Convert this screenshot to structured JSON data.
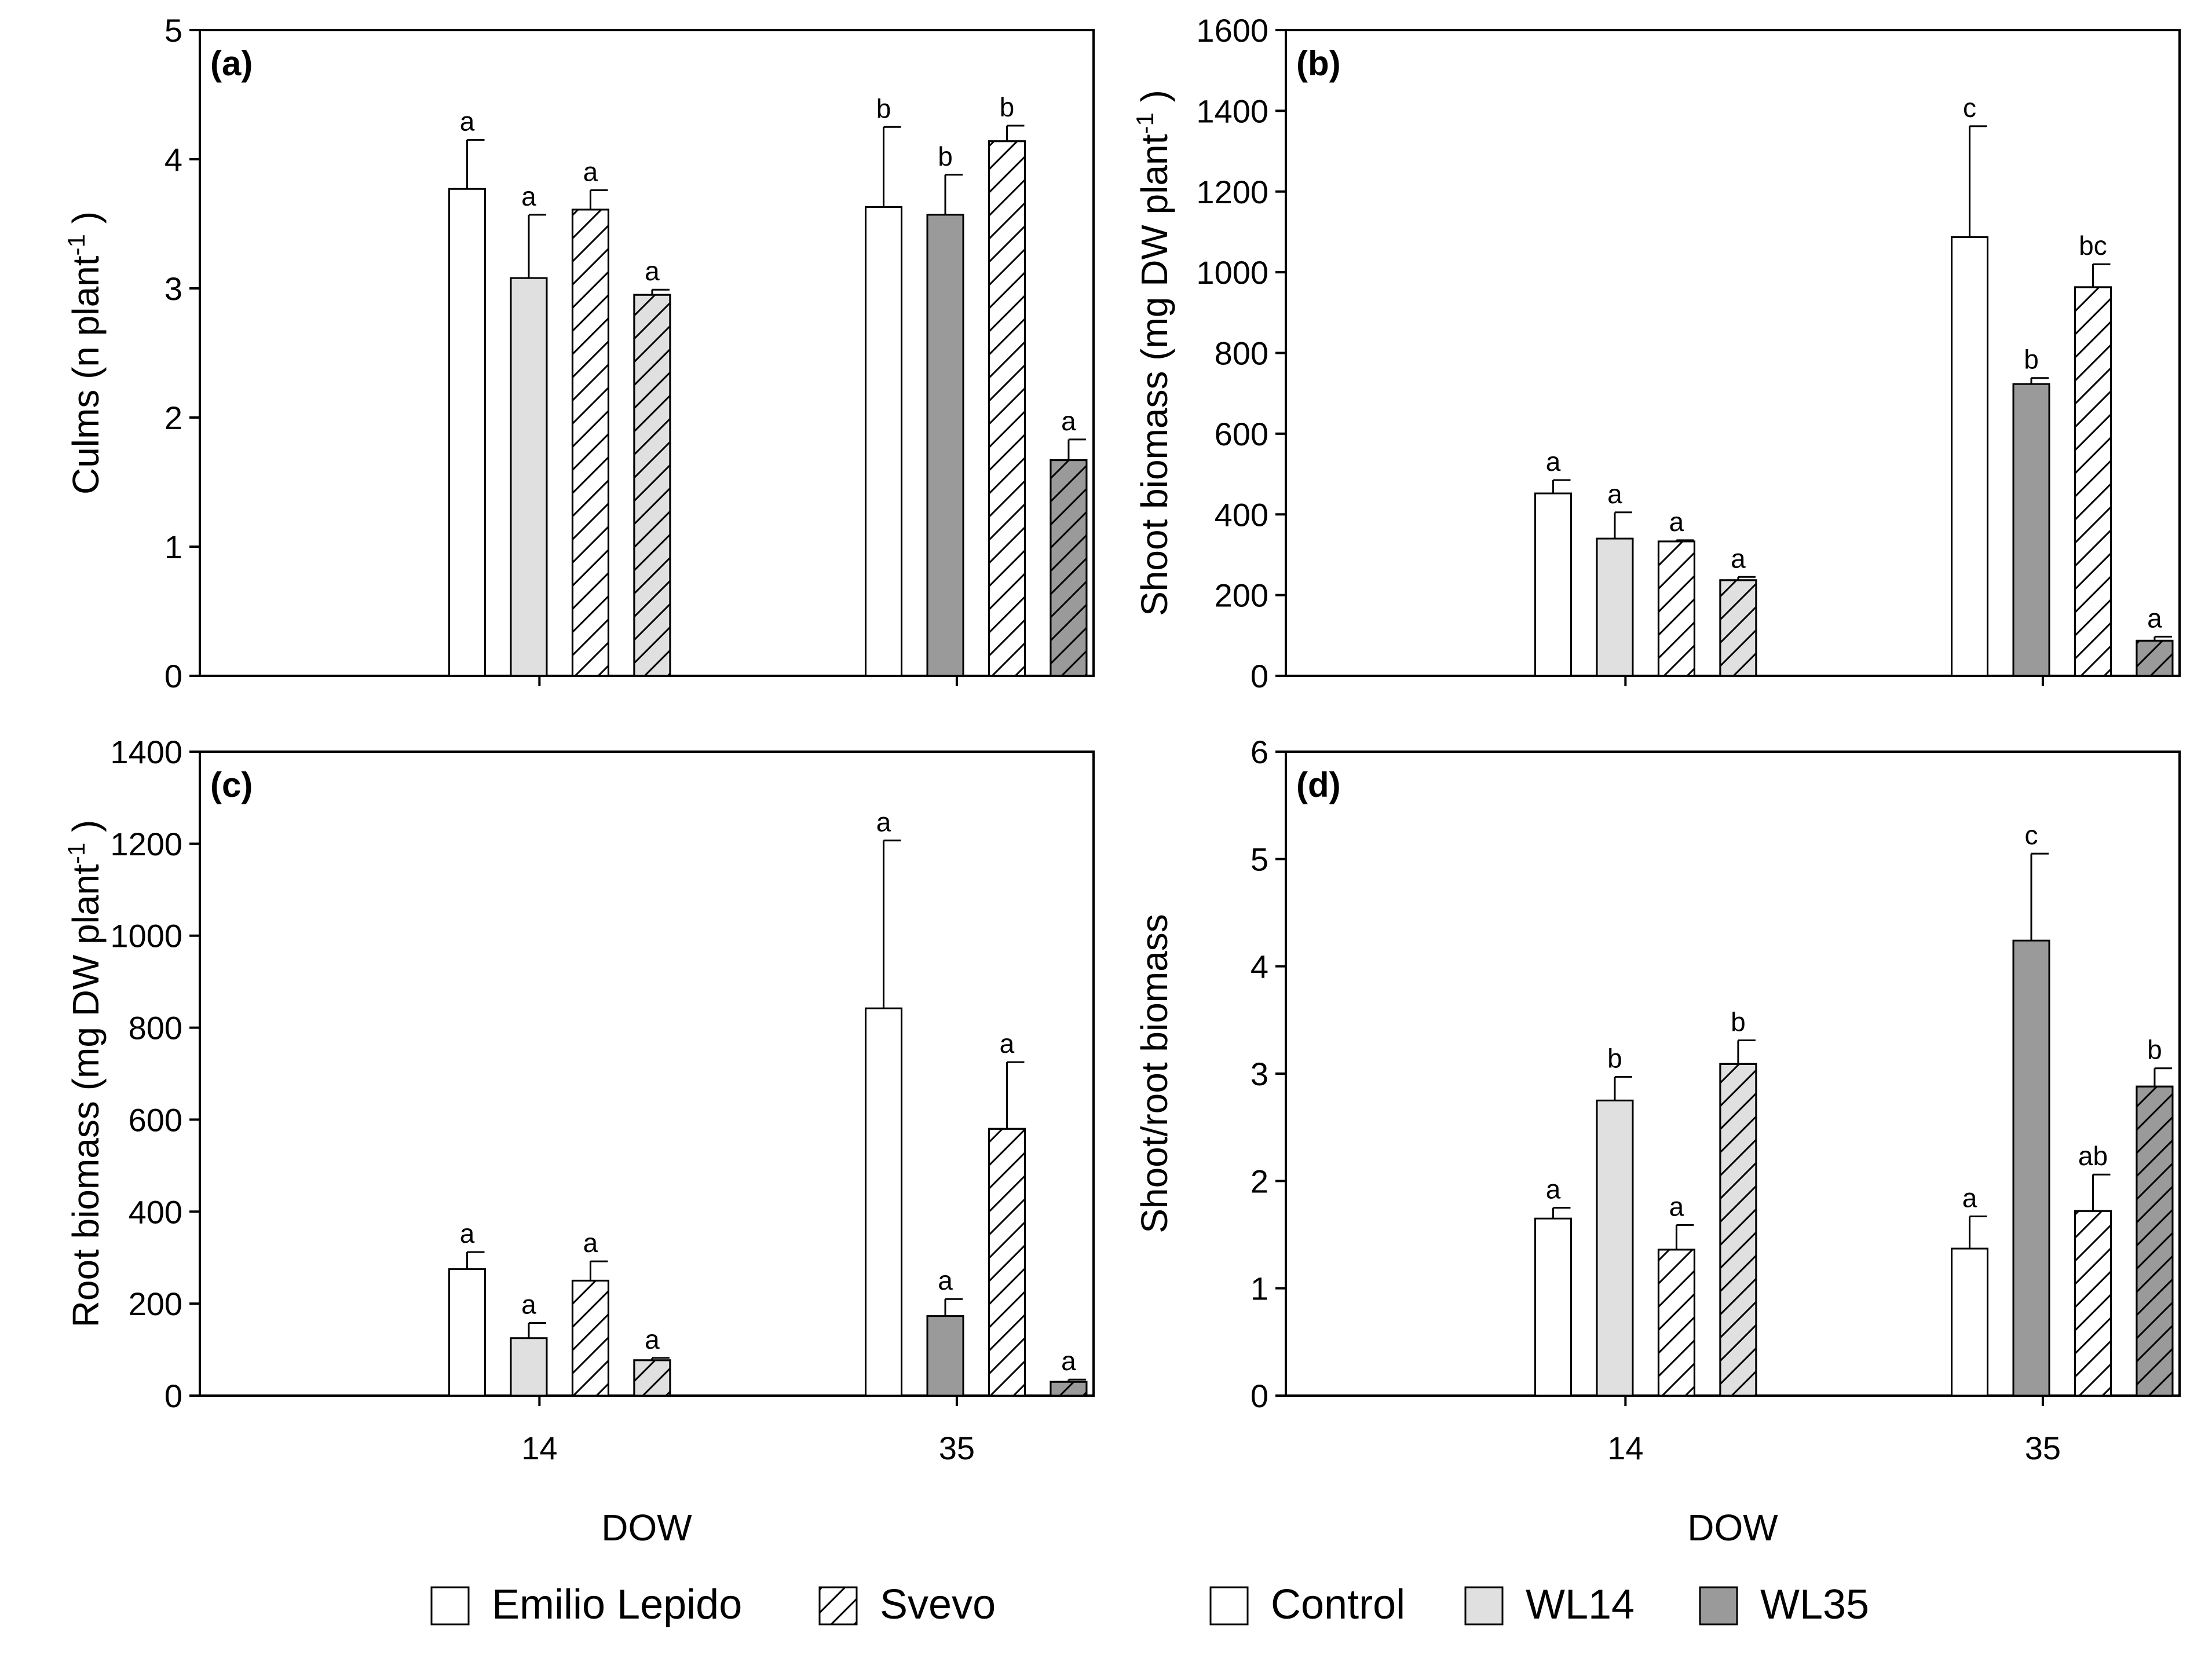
{
  "colors": {
    "Control": "#ffffff",
    "WL14": "#e0e0e0",
    "WL35": "#9a9a9a",
    "stroke": "#000000"
  },
  "legend": {
    "cultivars": [
      {
        "label": "Emilio Lepido",
        "pattern": "solid"
      },
      {
        "label": "Svevo",
        "pattern": "hatch"
      }
    ],
    "treatments": [
      {
        "label": "Control",
        "color": "#ffffff"
      },
      {
        "label": "WL14",
        "color": "#e0e0e0"
      },
      {
        "label": "WL35",
        "color": "#9a9a9a"
      }
    ]
  },
  "chart_data": [
    {
      "panel": "(a)",
      "type": "bar",
      "ylabel": "Culms (n plant^-1)",
      "xlabel": "",
      "categories": [
        "14",
        "35"
      ],
      "ylim": [
        0,
        5
      ],
      "yticks": [
        0,
        1,
        2,
        3,
        4,
        5
      ],
      "bars": [
        {
          "dow": "14",
          "cultivar": "Emilio Lepido",
          "treatment": "Control",
          "value": 3.77,
          "error": 0.38,
          "letter": "a"
        },
        {
          "dow": "14",
          "cultivar": "Emilio Lepido",
          "treatment": "WL14",
          "value": 3.08,
          "error": 0.49,
          "letter": "a"
        },
        {
          "dow": "14",
          "cultivar": "Svevo",
          "treatment": "Control",
          "value": 3.61,
          "error": 0.15,
          "letter": "a"
        },
        {
          "dow": "14",
          "cultivar": "Svevo",
          "treatment": "WL14",
          "value": 2.95,
          "error": 0.04,
          "letter": "a"
        },
        {
          "dow": "35",
          "cultivar": "Emilio Lepido",
          "treatment": "Control",
          "value": 3.63,
          "error": 0.62,
          "letter": "b"
        },
        {
          "dow": "35",
          "cultivar": "Emilio Lepido",
          "treatment": "WL35",
          "value": 3.57,
          "error": 0.31,
          "letter": "b"
        },
        {
          "dow": "35",
          "cultivar": "Svevo",
          "treatment": "Control",
          "value": 4.14,
          "error": 0.12,
          "letter": "b"
        },
        {
          "dow": "35",
          "cultivar": "Svevo",
          "treatment": "WL35",
          "value": 1.67,
          "error": 0.16,
          "letter": "a"
        }
      ]
    },
    {
      "panel": "(b)",
      "type": "bar",
      "ylabel": "Shoot biomass (mg DW plant^-1)",
      "xlabel": "",
      "categories": [
        "14",
        "35"
      ],
      "ylim": [
        0,
        1600
      ],
      "yticks": [
        0,
        200,
        400,
        600,
        800,
        1000,
        1200,
        1400,
        1600
      ],
      "bars": [
        {
          "dow": "14",
          "cultivar": "Emilio Lepido",
          "treatment": "Control",
          "value": 452,
          "error": 33,
          "letter": "a"
        },
        {
          "dow": "14",
          "cultivar": "Emilio Lepido",
          "treatment": "WL14",
          "value": 340,
          "error": 65,
          "letter": "a"
        },
        {
          "dow": "14",
          "cultivar": "Svevo",
          "treatment": "Control",
          "value": 333,
          "error": 3,
          "letter": "a"
        },
        {
          "dow": "14",
          "cultivar": "Svevo",
          "treatment": "WL14",
          "value": 237,
          "error": 8,
          "letter": "a"
        },
        {
          "dow": "35",
          "cultivar": "Emilio Lepido",
          "treatment": "Control",
          "value": 1087,
          "error": 275,
          "letter": "c"
        },
        {
          "dow": "35",
          "cultivar": "Emilio Lepido",
          "treatment": "WL35",
          "value": 723,
          "error": 15,
          "letter": "b"
        },
        {
          "dow": "35",
          "cultivar": "Svevo",
          "treatment": "Control",
          "value": 963,
          "error": 57,
          "letter": "bc"
        },
        {
          "dow": "35",
          "cultivar": "Svevo",
          "treatment": "WL35",
          "value": 87,
          "error": 10,
          "letter": "a"
        }
      ]
    },
    {
      "panel": "(c)",
      "type": "bar",
      "ylabel": "Root biomass (mg DW plant^-1)",
      "xlabel": "DOW",
      "categories": [
        "14",
        "35"
      ],
      "ylim": [
        0,
        1400
      ],
      "yticks": [
        0,
        200,
        400,
        600,
        800,
        1000,
        1200,
        1400
      ],
      "bars": [
        {
          "dow": "14",
          "cultivar": "Emilio Lepido",
          "treatment": "Control",
          "value": 275,
          "error": 37,
          "letter": "a"
        },
        {
          "dow": "14",
          "cultivar": "Emilio Lepido",
          "treatment": "WL14",
          "value": 125,
          "error": 33,
          "letter": "a"
        },
        {
          "dow": "14",
          "cultivar": "Svevo",
          "treatment": "Control",
          "value": 250,
          "error": 42,
          "letter": "a"
        },
        {
          "dow": "14",
          "cultivar": "Svevo",
          "treatment": "WL14",
          "value": 77,
          "error": 5,
          "letter": "a"
        },
        {
          "dow": "35",
          "cultivar": "Emilio Lepido",
          "treatment": "Control",
          "value": 842,
          "error": 365,
          "letter": "a"
        },
        {
          "dow": "35",
          "cultivar": "Emilio Lepido",
          "treatment": "WL35",
          "value": 173,
          "error": 37,
          "letter": "a"
        },
        {
          "dow": "35",
          "cultivar": "Svevo",
          "treatment": "Control",
          "value": 580,
          "error": 145,
          "letter": "a"
        },
        {
          "dow": "35",
          "cultivar": "Svevo",
          "treatment": "WL35",
          "value": 30,
          "error": 5,
          "letter": "a"
        }
      ]
    },
    {
      "panel": "(d)",
      "type": "bar",
      "ylabel": "Shoot/root biomass",
      "xlabel": "DOW",
      "categories": [
        "14",
        "35"
      ],
      "ylim": [
        0,
        6
      ],
      "yticks": [
        0,
        1,
        2,
        3,
        4,
        5,
        6
      ],
      "bars": [
        {
          "dow": "14",
          "cultivar": "Emilio Lepido",
          "treatment": "Control",
          "value": 1.65,
          "error": 0.1,
          "letter": "a"
        },
        {
          "dow": "14",
          "cultivar": "Emilio Lepido",
          "treatment": "WL14",
          "value": 2.75,
          "error": 0.22,
          "letter": "b"
        },
        {
          "dow": "14",
          "cultivar": "Svevo",
          "treatment": "Control",
          "value": 1.36,
          "error": 0.23,
          "letter": "a"
        },
        {
          "dow": "14",
          "cultivar": "Svevo",
          "treatment": "WL14",
          "value": 3.09,
          "error": 0.22,
          "letter": "b"
        },
        {
          "dow": "35",
          "cultivar": "Emilio Lepido",
          "treatment": "Control",
          "value": 1.37,
          "error": 0.3,
          "letter": "a"
        },
        {
          "dow": "35",
          "cultivar": "Emilio Lepido",
          "treatment": "WL35",
          "value": 4.24,
          "error": 0.81,
          "letter": "c"
        },
        {
          "dow": "35",
          "cultivar": "Svevo",
          "treatment": "Control",
          "value": 1.72,
          "error": 0.34,
          "letter": "ab"
        },
        {
          "dow": "35",
          "cultivar": "Svevo",
          "treatment": "WL35",
          "value": 2.88,
          "error": 0.17,
          "letter": "b"
        }
      ]
    }
  ]
}
